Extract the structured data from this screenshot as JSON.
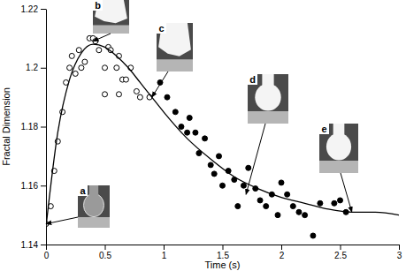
{
  "chart_data": {
    "type": "scatter",
    "x_label": "Time (s)",
    "y_label": "Fractal Dimension",
    "xlim": [
      0,
      3
    ],
    "xticks": [
      0,
      0.5,
      1,
      1.5,
      2,
      2.5,
      3
    ],
    "ylim": [
      1.14,
      1.22
    ],
    "yticks": [
      1.14,
      1.16,
      1.18,
      1.2,
      1.22
    ],
    "grid": false,
    "series": [
      {
        "type": "scatter",
        "marker": "open",
        "color": "#000000",
        "x": [
          0.0,
          0.04,
          0.07,
          0.1,
          0.14,
          0.17,
          0.2,
          0.22,
          0.25,
          0.28,
          0.3,
          0.33,
          0.37,
          0.4,
          0.42,
          0.45,
          0.5,
          0.5,
          0.53,
          0.55,
          0.6,
          0.62,
          0.62,
          0.65,
          0.68,
          0.72,
          0.77,
          0.8,
          0.88
        ],
        "values": [
          1.147,
          1.153,
          1.165,
          1.175,
          1.185,
          1.195,
          1.2,
          1.204,
          1.198,
          1.206,
          1.2,
          1.202,
          1.21,
          1.21,
          1.209,
          1.206,
          1.2,
          1.191,
          1.207,
          1.206,
          1.2,
          1.191,
          1.204,
          1.196,
          1.196,
          1.2,
          1.192,
          1.19,
          1.19
        ]
      },
      {
        "type": "scatter",
        "marker": "filled",
        "color": "#000000",
        "x": [
          0.97,
          1.03,
          1.1,
          1.15,
          1.2,
          1.22,
          1.27,
          1.3,
          1.35,
          1.4,
          1.43,
          1.47,
          1.5,
          1.55,
          1.6,
          1.63,
          1.68,
          1.72,
          1.78,
          1.82,
          1.87,
          1.92,
          1.97,
          2.0,
          2.05,
          2.1,
          2.15,
          2.2,
          2.27,
          2.33,
          2.45,
          2.5,
          2.55
        ],
        "values": [
          1.195,
          1.19,
          1.185,
          1.18,
          1.178,
          1.183,
          1.178,
          1.171,
          1.176,
          1.167,
          1.164,
          1.17,
          1.16,
          1.165,
          1.162,
          1.153,
          1.16,
          1.166,
          1.159,
          1.155,
          1.153,
          1.157,
          1.15,
          1.161,
          1.157,
          1.153,
          1.151,
          1.15,
          1.143,
          1.154,
          1.154,
          1.155,
          1.151
        ]
      },
      {
        "type": "line",
        "line_style": "solid",
        "color": "#000000",
        "x": [
          0,
          0.1,
          0.2,
          0.3,
          0.4,
          0.5,
          0.6,
          0.7,
          0.8,
          0.9,
          1.0,
          1.2,
          1.4,
          1.6,
          1.8,
          2.0,
          2.2,
          2.4,
          2.6,
          2.8,
          3.0
        ],
        "values": [
          1.146,
          1.178,
          1.196,
          1.205,
          1.208,
          1.207,
          1.204,
          1.2,
          1.195,
          1.19,
          1.185,
          1.176,
          1.169,
          1.163,
          1.159,
          1.156,
          1.154,
          1.152,
          1.151,
          1.151,
          1.15
        ]
      }
    ],
    "annotations": [
      {
        "text": "a",
        "x": 0,
        "y": 1.147
      },
      {
        "text": "b",
        "x": 0.4,
        "y": 1.209
      },
      {
        "text": "c",
        "x": 0.9,
        "y": 1.19
      },
      {
        "text": "d",
        "x": 1.7,
        "y": 1.157
      },
      {
        "text": "e",
        "x": 2.6,
        "y": 1.151
      }
    ]
  }
}
